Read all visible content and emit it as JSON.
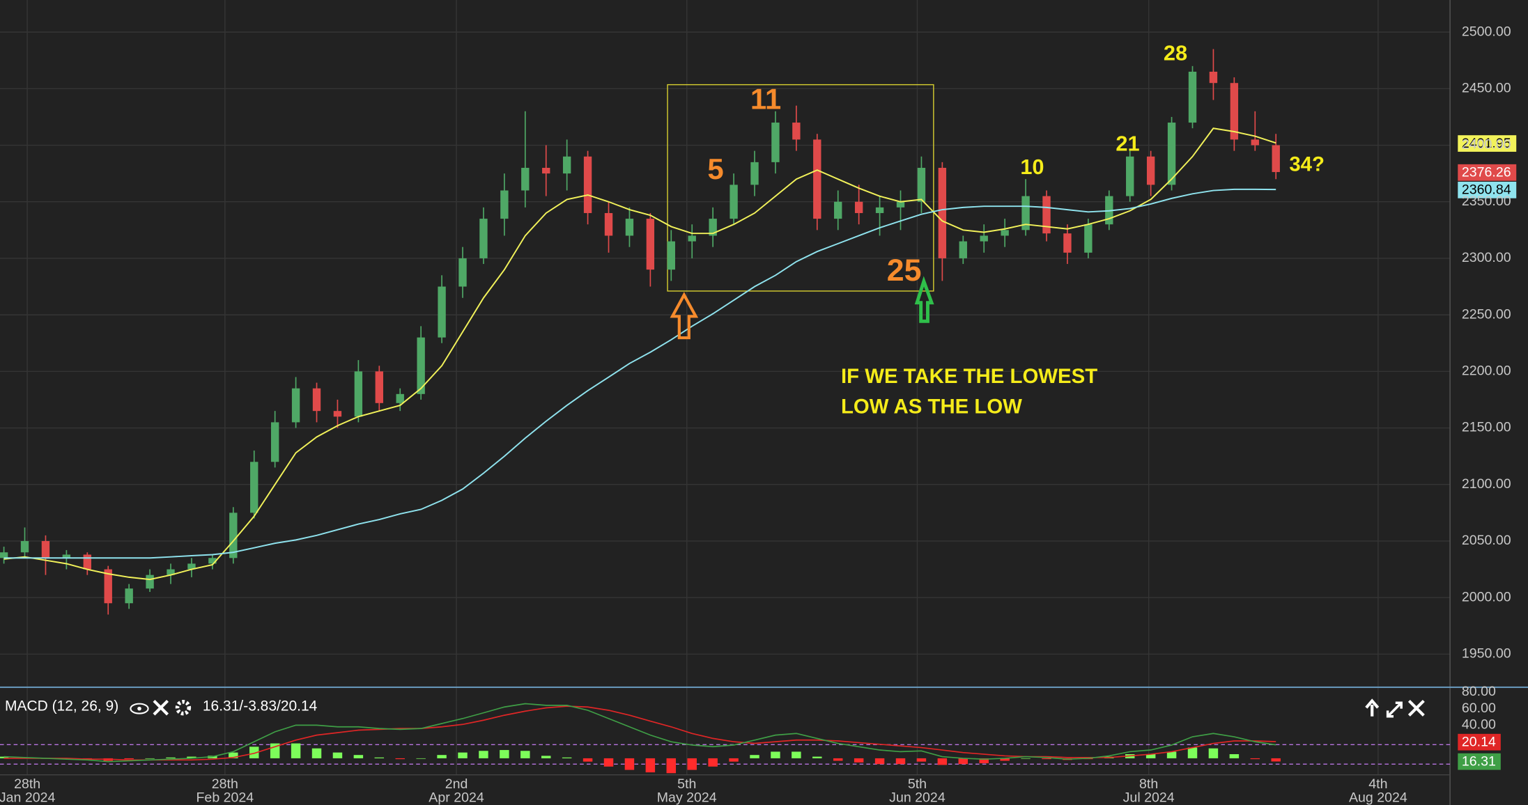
{
  "chart_data": [
    {
      "type": "candlestick",
      "xlim": [
        -0.187,
        69.35
      ],
      "ylim": [
        1921.6,
        2528.4
      ],
      "yticks": [
        {
          "value": 1950,
          "label": "1950.00"
        },
        {
          "value": 2000,
          "label": "2000.00"
        },
        {
          "value": 2050,
          "label": "2050.00"
        },
        {
          "value": 2100,
          "label": "2100.00"
        },
        {
          "value": 2150,
          "label": "2150.00"
        },
        {
          "value": 2200,
          "label": "2200.00"
        },
        {
          "value": 2250,
          "label": "2250.00"
        },
        {
          "value": 2300,
          "label": "2300.00"
        },
        {
          "value": 2350,
          "label": "2350.00"
        },
        {
          "value": 2400,
          "label": "2400.00"
        },
        {
          "value": 2450,
          "label": "2450.00"
        },
        {
          "value": 2500,
          "label": "2500.00"
        }
      ],
      "grid": true,
      "up_color": "#4fa866",
      "down_color": "#e04a4a",
      "open": [
        2035,
        2040,
        2050,
        2035,
        2038,
        2025,
        1995,
        2008,
        2020,
        2025,
        2030,
        2035,
        2075,
        2120,
        2155,
        2185,
        2165,
        2160,
        2200,
        2172,
        2180,
        2230,
        2275,
        2300,
        2335,
        2360,
        2380,
        2375,
        2390,
        2340,
        2320,
        2335,
        2290,
        2315,
        2320,
        2335,
        2365,
        2385,
        2420,
        2405,
        2335,
        2350,
        2340,
        2345,
        2350,
        2380,
        2300,
        2315,
        2320,
        2325,
        2355,
        2322,
        2305,
        2330,
        2355,
        2390,
        2365,
        2420,
        2465,
        2455,
        2405,
        2400
      ],
      "high": [
        2045,
        2062,
        2055,
        2042,
        2040,
        2028,
        2012,
        2025,
        2030,
        2035,
        2038,
        2080,
        2130,
        2165,
        2195,
        2190,
        2175,
        2210,
        2205,
        2185,
        2240,
        2285,
        2310,
        2345,
        2375,
        2430,
        2400,
        2405,
        2395,
        2350,
        2345,
        2340,
        2325,
        2330,
        2345,
        2375,
        2395,
        2430,
        2435,
        2410,
        2360,
        2365,
        2355,
        2360,
        2390,
        2385,
        2320,
        2330,
        2335,
        2370,
        2360,
        2330,
        2335,
        2360,
        2395,
        2395,
        2425,
        2470,
        2485,
        2460,
        2430,
        2410
      ],
      "low": [
        2030,
        2035,
        2020,
        2025,
        2020,
        1985,
        1990,
        2005,
        2012,
        2018,
        2025,
        2030,
        2070,
        2115,
        2150,
        2155,
        2150,
        2155,
        2165,
        2165,
        2175,
        2225,
        2265,
        2295,
        2320,
        2345,
        2355,
        2360,
        2330,
        2305,
        2310,
        2275,
        2280,
        2300,
        2310,
        2330,
        2355,
        2375,
        2395,
        2325,
        2325,
        2330,
        2320,
        2325,
        2340,
        2280,
        2295,
        2305,
        2310,
        2320,
        2315,
        2295,
        2300,
        2325,
        2350,
        2355,
        2360,
        2415,
        2440,
        2395,
        2395,
        2370
      ],
      "close": [
        2040,
        2050,
        2035,
        2038,
        2025,
        1995,
        2008,
        2020,
        2025,
        2030,
        2035,
        2075,
        2120,
        2155,
        2185,
        2165,
        2160,
        2200,
        2172,
        2180,
        2230,
        2275,
        2300,
        2335,
        2360,
        2380,
        2375,
        2390,
        2340,
        2320,
        2335,
        2290,
        2315,
        2320,
        2335,
        2365,
        2385,
        2420,
        2405,
        2335,
        2350,
        2340,
        2345,
        2350,
        2380,
        2300,
        2315,
        2320,
        2325,
        2355,
        2322,
        2305,
        2330,
        2355,
        2390,
        2365,
        2420,
        2465,
        2455,
        2405,
        2400,
        2376.26
      ],
      "series": [
        {
          "color": "#f2f25a",
          "values": [
            2034,
            2036,
            2033,
            2030,
            2025,
            2021,
            2018,
            2016,
            2020,
            2025,
            2029,
            2050,
            2072,
            2100,
            2128,
            2142,
            2152,
            2160,
            2165,
            2170,
            2185,
            2205,
            2235,
            2265,
            2290,
            2320,
            2340,
            2352,
            2356,
            2350,
            2343,
            2338,
            2328,
            2322,
            2322,
            2330,
            2340,
            2355,
            2370,
            2378,
            2370,
            2362,
            2355,
            2350,
            2352,
            2333,
            2325,
            2323,
            2326,
            2330,
            2328,
            2326,
            2330,
            2335,
            2342,
            2352,
            2370,
            2390,
            2415,
            2412,
            2408,
            2401.95
          ]
        },
        {
          "color": "#8fe3ee",
          "values": [
            2035,
            2035,
            2035,
            2035,
            2035,
            2035,
            2035,
            2035,
            2036,
            2037,
            2038,
            2040,
            2044,
            2048,
            2051,
            2055,
            2060,
            2065,
            2069,
            2074,
            2078,
            2086,
            2096,
            2110,
            2125,
            2141,
            2156,
            2170,
            2183,
            2195,
            2207,
            2217,
            2228,
            2240,
            2251,
            2263,
            2275,
            2285,
            2297,
            2306,
            2313,
            2320,
            2327,
            2333,
            2339,
            2343,
            2345,
            2346,
            2346,
            2346,
            2345,
            2343,
            2341,
            2342,
            2344,
            2348,
            2353,
            2357,
            2360,
            2361,
            2361,
            2360.84
          ]
        }
      ],
      "close_color": "#e04a4a",
      "annotations": [
        {
          "text": "11",
          "color": "#f68b2c"
        },
        {
          "text": "5",
          "color": "#f68b2c"
        },
        {
          "text": "25",
          "color": "#f68b2c"
        },
        {
          "text": "10",
          "color": "#f5ec1a"
        },
        {
          "text": "21",
          "color": "#f5ec1a"
        },
        {
          "text": "28",
          "color": "#f5ec1a"
        },
        {
          "text": "34?",
          "color": "#f5ec1a"
        },
        {
          "text": "IF WE TAKE THE LOWEST",
          "color": "#f5ec1a"
        },
        {
          "text": "LOW AS THE LOW",
          "color": "#f5ec1a"
        }
      ]
    },
    {
      "type": "macd",
      "title": "MACD (12, 26, 9)",
      "readout": "16.31/-3.83/20.14",
      "xlim": [
        -0.187,
        69.35
      ],
      "ylim": [
        -18.8,
        87.1
      ],
      "yticks": [
        {
          "value": 40,
          "label": "40.00"
        },
        {
          "value": 60,
          "label": "60.00"
        },
        {
          "value": 80,
          "label": "80.00"
        }
      ],
      "xticks": [
        {
          "value": 1.12,
          "label": [
            "28th",
            "Jan 2024"
          ]
        },
        {
          "value": 10.6,
          "label": [
            "28th",
            "Feb 2024"
          ]
        },
        {
          "value": 21.7,
          "label": [
            "2nd",
            "Apr 2024"
          ]
        },
        {
          "value": 32.75,
          "label": [
            "5th",
            "May 2024"
          ]
        },
        {
          "value": 43.8,
          "label": [
            "5th",
            "Jun 2024"
          ]
        },
        {
          "value": 54.9,
          "label": [
            "8th",
            "Jul 2024"
          ]
        },
        {
          "value": 65.9,
          "label": [
            "4th",
            "Aug 2024"
          ]
        }
      ],
      "histogram": {
        "up_color": "#7dfc5a",
        "down_color": "#ff2b2b",
        "values": [
          2,
          1,
          0,
          -1,
          -1,
          -3,
          -1,
          0,
          1,
          2,
          3,
          7,
          14,
          18,
          18,
          12,
          7,
          4,
          1,
          -1,
          0,
          4,
          7,
          9,
          10,
          9,
          3,
          1,
          -4,
          -10,
          -14,
          -17,
          -18,
          -14,
          -10,
          -4,
          4,
          8,
          8,
          2,
          -3,
          -5,
          -7,
          -7,
          -4,
          -8,
          -7,
          -6,
          -3,
          0,
          -1,
          -2,
          -1,
          2,
          5,
          5,
          8,
          13,
          12,
          5,
          -1,
          -3.83
        ]
      },
      "series": [
        {
          "color": "#e02626",
          "values": [
            0,
            0,
            0,
            0,
            -1,
            -1,
            -2,
            -2,
            -2,
            -2,
            -1,
            1,
            6,
            14,
            22,
            28,
            31,
            34,
            35,
            36,
            36,
            38,
            41,
            46,
            52,
            57,
            61,
            63,
            62,
            58,
            52,
            45,
            38,
            30,
            24,
            20,
            18,
            20,
            22,
            22,
            21,
            19,
            17,
            15,
            13,
            10,
            7,
            5,
            3,
            2,
            2,
            1,
            1,
            1,
            3,
            5,
            8,
            13,
            18,
            21,
            21,
            20.14
          ]
        },
        {
          "color": "#3f9f46",
          "values": [
            2,
            1,
            0,
            -1,
            -2,
            -4,
            -3,
            -2,
            -1,
            0,
            2,
            8,
            20,
            32,
            40,
            40,
            38,
            38,
            36,
            35,
            36,
            42,
            48,
            55,
            62,
            66,
            64,
            64,
            58,
            48,
            38,
            28,
            20,
            16,
            14,
            16,
            22,
            28,
            30,
            24,
            18,
            14,
            10,
            8,
            9,
            2,
            0,
            -1,
            0,
            2,
            1,
            -1,
            0,
            3,
            8,
            10,
            16,
            26,
            30,
            26,
            20,
            16.31
          ]
        }
      ]
    }
  ]
}
